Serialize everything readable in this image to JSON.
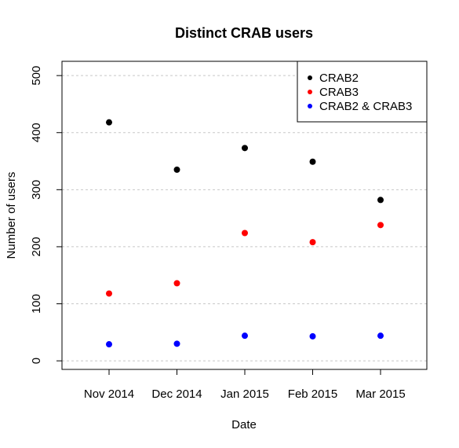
{
  "chart_data": {
    "type": "scatter",
    "title": "Distinct CRAB users",
    "xlabel": "Date",
    "ylabel": "Number of users",
    "categories": [
      "Nov 2014",
      "Dec 2014",
      "Jan 2015",
      "Feb 2015",
      "Mar 2015"
    ],
    "ylim": [
      -15,
      525
    ],
    "yticks": [
      0,
      100,
      200,
      300,
      400,
      500
    ],
    "grid": "horizontal dotted",
    "legend_position": "top-right",
    "series": [
      {
        "name": "CRAB2",
        "color": "#000000",
        "values": [
          418,
          335,
          373,
          349,
          282
        ]
      },
      {
        "name": "CRAB3",
        "color": "#ff0000",
        "values": [
          118,
          136,
          224,
          208,
          238
        ]
      },
      {
        "name": "CRAB2 & CRAB3",
        "color": "#0000ff",
        "values": [
          29,
          30,
          44,
          43,
          44
        ]
      }
    ]
  }
}
